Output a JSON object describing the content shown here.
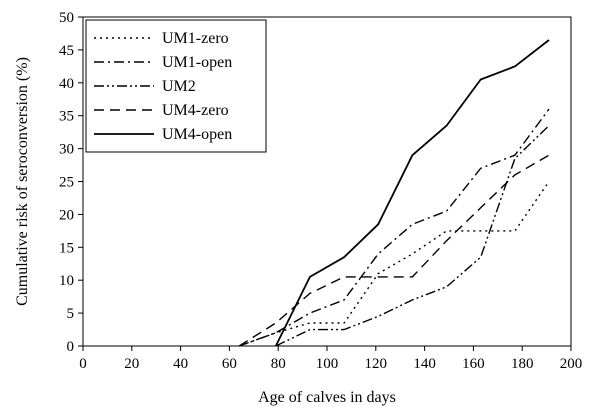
{
  "chart_data": {
    "type": "line",
    "xlabel": "Age of calves in days",
    "ylabel": "Cumulative risk of seroconversion (%)",
    "xlim": [
      0,
      200
    ],
    "ylim": [
      0,
      50
    ],
    "xticks": [
      "0",
      "20",
      "40",
      "60",
      "80",
      "100",
      "120",
      "140",
      "160",
      "180",
      "200"
    ],
    "yticks": [
      "0",
      "5",
      "10",
      "15",
      "20",
      "25",
      "30",
      "35",
      "40",
      "45",
      "50"
    ],
    "grid": false,
    "legend_position": "top-left",
    "series": [
      {
        "name": "UM1-zero",
        "dash": "dotted",
        "points": [
          [
            64,
            0
          ],
          [
            79,
            2
          ],
          [
            93,
            3.5
          ],
          [
            107,
            3.5
          ],
          [
            121,
            11
          ],
          [
            135,
            14
          ],
          [
            149,
            17.5
          ],
          [
            163,
            17.5
          ],
          [
            177,
            17.5
          ],
          [
            191,
            25
          ]
        ]
      },
      {
        "name": "UM1-open",
        "dash": "dash-dot",
        "points": [
          [
            64,
            0
          ],
          [
            79,
            2
          ],
          [
            93,
            5
          ],
          [
            107,
            7
          ],
          [
            121,
            14
          ],
          [
            135,
            18.5
          ],
          [
            149,
            20.5
          ],
          [
            163,
            27
          ],
          [
            177,
            29
          ],
          [
            191,
            36
          ]
        ]
      },
      {
        "name": "UM2",
        "dash": "dash-dot-dot",
        "points": [
          [
            79,
            0
          ],
          [
            93,
            2.5
          ],
          [
            107,
            2.5
          ],
          [
            121,
            4.5
          ],
          [
            135,
            7
          ],
          [
            149,
            9
          ],
          [
            163,
            13.5
          ],
          [
            177,
            28.5
          ],
          [
            191,
            33.5
          ]
        ]
      },
      {
        "name": "UM4-zero",
        "dash": "dashed",
        "points": [
          [
            64,
            0
          ],
          [
            79,
            3.5
          ],
          [
            93,
            8
          ],
          [
            107,
            10.5
          ],
          [
            121,
            10.5
          ],
          [
            135,
            10.5
          ],
          [
            149,
            16
          ],
          [
            163,
            21
          ],
          [
            177,
            26
          ],
          [
            191,
            29
          ]
        ]
      },
      {
        "name": "UM4-open",
        "dash": "solid",
        "points": [
          [
            79,
            0
          ],
          [
            93,
            10.5
          ],
          [
            107,
            13.5
          ],
          [
            121,
            18.5
          ],
          [
            135,
            29
          ],
          [
            149,
            33.5
          ],
          [
            163,
            40.5
          ],
          [
            177,
            42.5
          ],
          [
            191,
            46.5
          ]
        ]
      }
    ]
  }
}
